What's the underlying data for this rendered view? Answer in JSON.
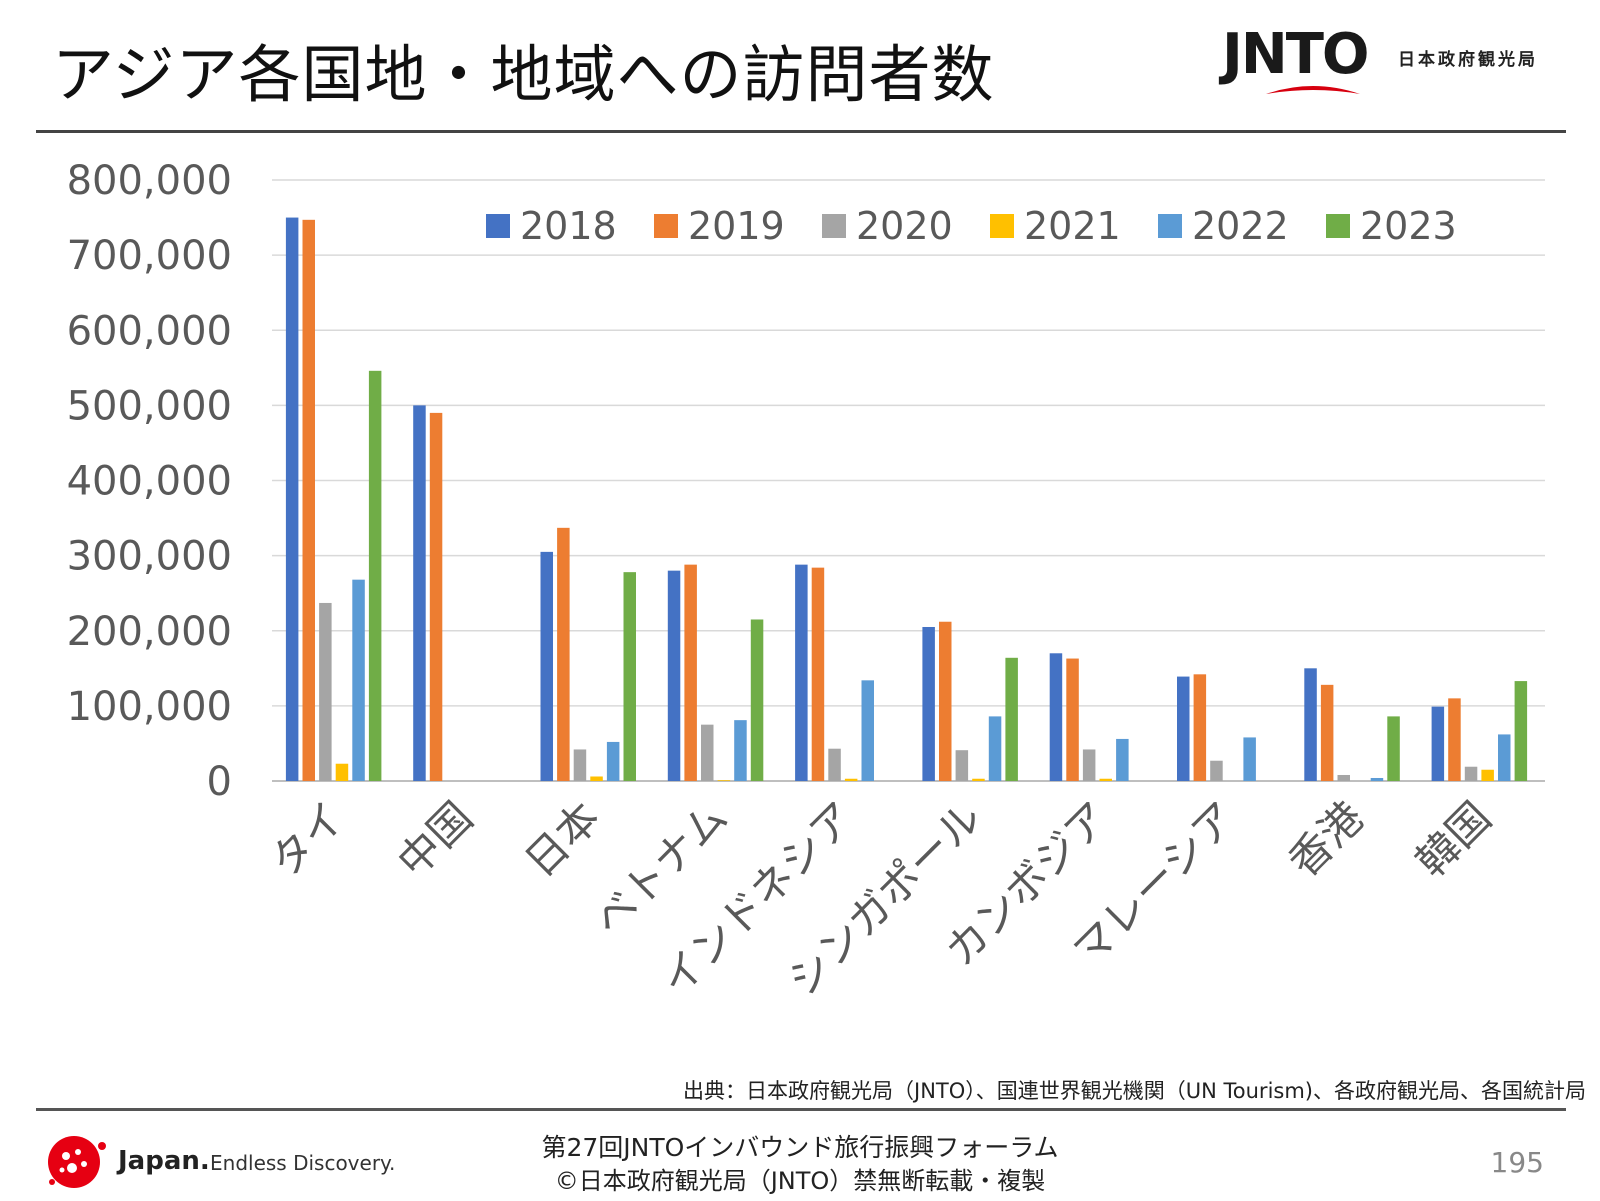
{
  "header": {
    "title": "アジア各国地・地域への訪問者数",
    "logo_text": "JNTO",
    "logo_subtitle": "日本政府観光局"
  },
  "chart_data": {
    "type": "bar",
    "title": "アジア各国地・地域への訪問者数",
    "xlabel": "",
    "ylabel": "",
    "ylim": [
      0,
      800000
    ],
    "yticks": [
      0,
      100000,
      200000,
      300000,
      400000,
      500000,
      600000,
      700000,
      800000
    ],
    "ytick_labels": [
      "0",
      "100,000",
      "200,000",
      "300,000",
      "400,000",
      "500,000",
      "600,000",
      "700,000",
      "800,000"
    ],
    "grid": true,
    "legend_position": "top-right",
    "categories": [
      "タイ",
      "中国",
      "日本",
      "ベトナム",
      "インドネシア",
      "シンガポール",
      "カンボジア",
      "マレーシア",
      "香港",
      "韓国"
    ],
    "series": [
      {
        "name": "2018",
        "color": "#4472c4",
        "values": [
          750000,
          500000,
          305000,
          280000,
          288000,
          205000,
          170000,
          139000,
          150000,
          99000
        ]
      },
      {
        "name": "2019",
        "color": "#ed7d31",
        "values": [
          747000,
          490000,
          337000,
          288000,
          284000,
          212000,
          163000,
          142000,
          128000,
          110000
        ]
      },
      {
        "name": "2020",
        "color": "#a5a5a5",
        "values": [
          237000,
          0,
          42000,
          75000,
          43000,
          41000,
          42000,
          27000,
          8000,
          19000
        ]
      },
      {
        "name": "2021",
        "color": "#ffc000",
        "values": [
          23000,
          0,
          6000,
          1000,
          3000,
          3000,
          3000,
          0,
          0,
          15000
        ]
      },
      {
        "name": "2022",
        "color": "#5b9bd5",
        "values": [
          268000,
          0,
          52000,
          81000,
          134000,
          86000,
          56000,
          58000,
          4000,
          62000
        ]
      },
      {
        "name": "2023",
        "color": "#70ad47",
        "values": [
          546000,
          0,
          278000,
          215000,
          0,
          164000,
          0,
          0,
          86000,
          133000
        ]
      }
    ]
  },
  "source_note": "出典：日本政府観光局（JNTO）、国連世界観光機関（UN Tourism)、各政府観光局、各国統計局",
  "footer": {
    "brand_name": "Japan.",
    "brand_tagline": "Endless Discovery.",
    "line1": "第27回JNTOインバウンド旅行振興フォーラム",
    "line2": "©日本政府観光局（JNTO）禁無断転載・複製",
    "page_number": "195"
  }
}
